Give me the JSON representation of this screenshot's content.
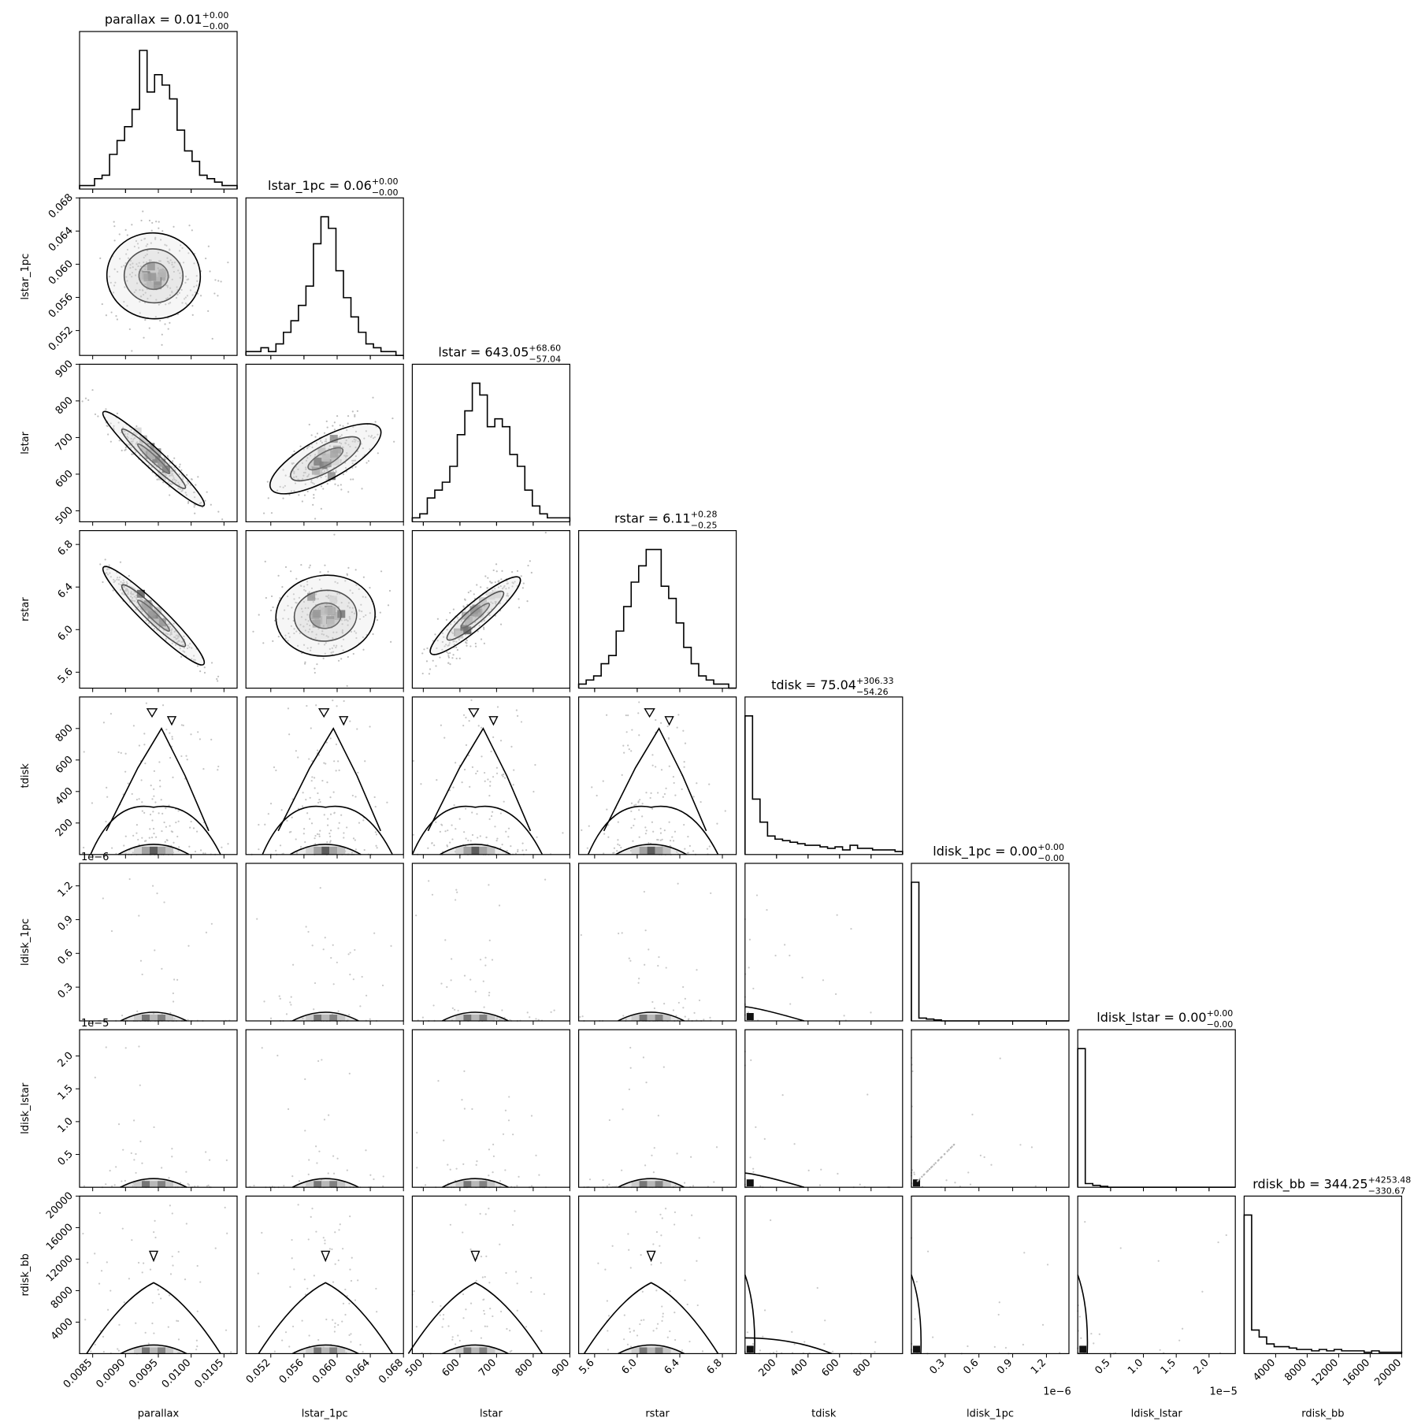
{
  "chart_data": {
    "type": "corner",
    "params": [
      "parallax",
      "lstar_1pc",
      "lstar",
      "rstar",
      "tdisk",
      "ldisk_1pc",
      "ldisk_lstar",
      "rdisk_bb"
    ],
    "axis_labels": [
      "parallax",
      "lstar_1pc",
      "lstar",
      "rstar",
      "tdisk",
      "ldisk_1pc",
      "ldisk_lstar",
      "rdisk_bb"
    ],
    "ranges": [
      [
        0.0083,
        0.0107
      ],
      [
        0.049,
        0.068
      ],
      [
        470,
        900
      ],
      [
        5.45,
        6.93
      ],
      [
        0,
        1000
      ],
      [
        0,
        1.4e-06
      ],
      [
        0,
        2.4e-05
      ],
      [
        0,
        20000
      ]
    ],
    "ticks": [
      [
        0.0085,
        0.009,
        0.0095,
        0.01,
        0.0105
      ],
      [
        0.052,
        0.056,
        0.06,
        0.064,
        0.068
      ],
      [
        500,
        600,
        700,
        800,
        900
      ],
      [
        5.6,
        6.0,
        6.4,
        6.8
      ],
      [
        200,
        400,
        600,
        800
      ],
      [
        3e-07,
        6e-07,
        9e-07,
        1.2e-06
      ],
      [
        5e-06,
        1e-05,
        1.5e-05,
        2e-05
      ],
      [
        4000,
        8000,
        12000,
        16000,
        20000
      ]
    ],
    "tick_labels": [
      [
        "0.0085",
        "0.0090",
        "0.0095",
        "0.0100",
        "0.0105"
      ],
      [
        "0.052",
        "0.056",
        "0.060",
        "0.064",
        "0.068"
      ],
      [
        "500",
        "600",
        "700",
        "800",
        "900"
      ],
      [
        "5.6",
        "6.0",
        "6.4",
        "6.8"
      ],
      [
        "200",
        "400",
        "600",
        "800"
      ],
      [
        "0.3",
        "0.6",
        "0.9",
        "1.2"
      ],
      [
        "0.5",
        "1.0",
        "1.5",
        "2.0"
      ],
      [
        "4000",
        "8000",
        "12000",
        "16000",
        "20000"
      ]
    ],
    "y_tick_labels": [
      null,
      [
        "0.052",
        "0.056",
        "0.060",
        "0.064",
        "0.068"
      ],
      [
        "500",
        "600",
        "700",
        "800",
        "900"
      ],
      [
        "5.6",
        "6.0",
        "6.4",
        "6.8"
      ],
      [
        "200",
        "400",
        "600",
        "800"
      ],
      [
        "0.3",
        "0.6",
        "0.9",
        "1.2"
      ],
      [
        "0.5",
        "1.0",
        "1.5",
        "2.0"
      ],
      [
        "4000",
        "8000",
        "12000",
        "16000",
        "20000"
      ]
    ],
    "offset_labels": [
      "",
      "",
      "",
      "",
      "",
      "1e−6",
      "1e−5",
      ""
    ],
    "titles": [
      {
        "name": "parallax",
        "value": "0.01",
        "plus": "+0.00",
        "minus": "−0.00"
      },
      {
        "name": "lstar_1pc",
        "value": "0.06",
        "plus": "+0.00",
        "minus": "−0.00"
      },
      {
        "name": "lstar",
        "value": "643.05",
        "plus": "+68.60",
        "minus": "−57.04"
      },
      {
        "name": "rstar",
        "value": "6.11",
        "plus": "+0.28",
        "minus": "−0.25"
      },
      {
        "name": "tdisk",
        "value": "75.04",
        "plus": "+306.33",
        "minus": "−54.26"
      },
      {
        "name": "ldisk_1pc",
        "value": "0.00",
        "plus": "+0.00",
        "minus": "−0.00"
      },
      {
        "name": "ldisk_lstar",
        "value": "0.00",
        "plus": "+0.00",
        "minus": "−0.00"
      },
      {
        "name": "rdisk_bb",
        "value": "344.25",
        "plus": "+4253.48",
        "minus": "−330.67"
      }
    ],
    "histograms": [
      [
        1,
        1,
        3,
        4,
        10,
        14,
        18,
        23,
        40,
        28,
        33,
        30,
        26,
        17,
        11,
        8,
        4,
        3,
        2,
        1,
        1
      ],
      [
        1,
        1,
        2,
        1,
        3,
        6,
        9,
        13,
        18,
        29,
        36,
        33,
        22,
        15,
        10,
        6,
        3,
        2,
        1,
        1,
        0
      ],
      [
        1,
        2,
        6,
        8,
        10,
        14,
        22,
        28,
        35,
        32,
        24,
        26,
        24,
        17,
        14,
        8,
        4,
        2,
        1,
        1,
        1
      ],
      [
        1,
        2,
        3,
        6,
        8,
        14,
        20,
        26,
        30,
        34,
        34,
        25,
        22,
        16,
        10,
        6,
        3,
        2,
        1,
        1,
        0
      ],
      [
        90,
        36,
        21,
        12,
        10,
        9,
        8,
        7,
        6,
        6,
        5,
        4,
        5,
        3,
        6,
        4,
        4,
        3,
        3,
        3,
        2
      ],
      [
        150,
        3,
        2,
        1,
        0,
        0,
        0,
        0,
        0,
        0,
        0,
        0,
        0,
        0,
        0,
        0,
        0,
        0,
        0,
        0,
        0
      ],
      [
        150,
        4,
        2,
        1,
        0,
        0,
        0,
        0,
        0,
        0,
        0,
        0,
        0,
        0,
        0,
        0,
        0,
        0,
        0,
        0,
        0
      ],
      [
        100,
        17,
        12,
        7,
        5,
        5,
        4,
        3,
        3,
        2,
        3,
        2,
        3,
        2,
        2,
        2,
        1,
        2,
        1,
        1,
        1
      ]
    ],
    "grid": false,
    "legend": "none"
  }
}
